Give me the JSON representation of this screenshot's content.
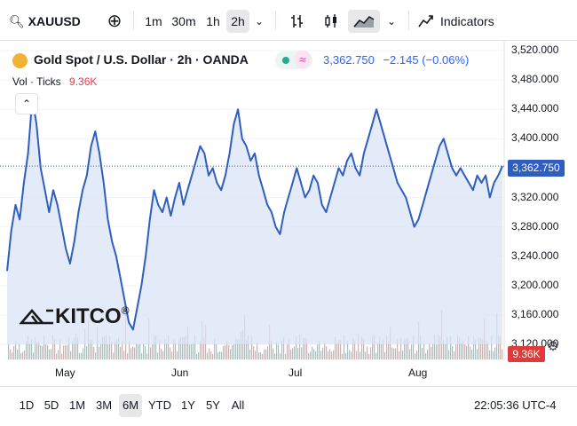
{
  "toolbar": {
    "symbol": "XAUUSD",
    "intervals": [
      "1m",
      "30m",
      "1h",
      "2h"
    ],
    "active_interval": "2h",
    "indicators_label": "Indicators"
  },
  "legend": {
    "title": "Gold Spot / U.S. Dollar · 2h · OANDA",
    "price": "3,362.750",
    "change": "−2.145 (−0.06%)",
    "volume_label": "Vol · Ticks",
    "volume_value": "9.36K"
  },
  "price_scale": {
    "ticks": [
      "3,520.000",
      "3,480.000",
      "3,440.000",
      "3,400.000",
      "3,360.000",
      "3,320.000",
      "3,280.000",
      "3,240.000",
      "3,200.000",
      "3,160.000",
      "3,120.000"
    ],
    "current_price_tag": "3,362.750",
    "volume_tag": "9.36K"
  },
  "time_axis": {
    "labels": [
      "May",
      "Jun",
      "Jul",
      "Aug"
    ]
  },
  "watermark": "KITCO",
  "range_buttons": [
    "1D",
    "5D",
    "1M",
    "3M",
    "6M",
    "YTD",
    "1Y",
    "5Y",
    "All"
  ],
  "active_range": "6M",
  "clock": "22:05:36 UTC-4",
  "colors": {
    "line": "#2f5ebf",
    "area": "#dbe4f5",
    "vol_up": "#26a69a",
    "vol_down": "#ef5350",
    "price_tag": "#2f5ebf",
    "vol_tag": "#e03a3a"
  },
  "chart_data": {
    "type": "area",
    "ylim": [
      3120,
      3520
    ],
    "x_labels": [
      "May",
      "Jun",
      "Jul",
      "Aug"
    ],
    "series": [
      {
        "values": [
          3220,
          3275,
          3310,
          3290,
          3340,
          3380,
          3455,
          3420,
          3360,
          3330,
          3300,
          3330,
          3310,
          3280,
          3250,
          3230,
          3260,
          3300,
          3330,
          3350,
          3390,
          3410,
          3380,
          3340,
          3290,
          3260,
          3240,
          3210,
          3180,
          3150,
          3140,
          3170,
          3200,
          3240,
          3290,
          3330,
          3310,
          3300,
          3320,
          3295,
          3320,
          3340,
          3310,
          3330,
          3350,
          3370,
          3390,
          3380,
          3350,
          3360,
          3340,
          3330,
          3350,
          3380,
          3420,
          3440,
          3400,
          3390,
          3370,
          3380,
          3350,
          3330,
          3310,
          3300,
          3280,
          3270,
          3300,
          3320,
          3340,
          3360,
          3340,
          3320,
          3330,
          3350,
          3340,
          3310,
          3300,
          3320,
          3340,
          3360,
          3350,
          3370,
          3380,
          3360,
          3350,
          3380,
          3400,
          3420,
          3440,
          3420,
          3400,
          3380,
          3360,
          3340,
          3330,
          3320,
          3300,
          3280,
          3290,
          3310,
          3330,
          3350,
          3370,
          3390,
          3400,
          3380,
          3360,
          3350,
          3360,
          3350,
          3340,
          3330,
          3350,
          3340,
          3350,
          3320,
          3340,
          3350,
          3362.75
        ]
      }
    ]
  }
}
